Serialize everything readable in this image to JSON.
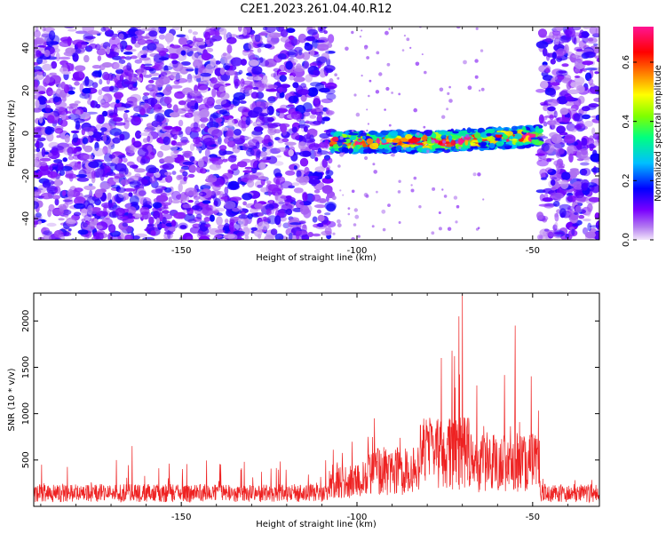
{
  "figure": {
    "title": "C2E1.2023.261.04.40.R12"
  },
  "chart_data": [
    {
      "type": "heatmap",
      "xlabel": "Height of straight line (km)",
      "ylabel": "Frequency (Hz)",
      "xlim": [
        -192,
        -31
      ],
      "ylim": [
        -50,
        50
      ],
      "x_ticks": [
        -150,
        -100,
        -50
      ],
      "y_ticks": [
        -40,
        -20,
        0,
        20,
        40
      ],
      "colorbar": {
        "label": "Normalized spectral amplitude",
        "range": [
          0.0,
          0.72
        ],
        "ticks": [
          0.0,
          0.2,
          0.4,
          0.6
        ],
        "colormap": [
          "#f2e6fb",
          "#7a00ff",
          "#0000ff",
          "#00bfff",
          "#00ff80",
          "#7fff00",
          "#ffff00",
          "#ff8000",
          "#ff0000",
          "#ff1493"
        ]
      },
      "regions": [
        {
          "x": [
            -192,
            -107
          ],
          "freq": [
            -50,
            50
          ],
          "level": 0.1,
          "note": "broadband noise"
        },
        {
          "x": [
            -107,
            -48
          ],
          "freq": [
            -9,
            1
          ],
          "level": 0.6,
          "note": "echo band"
        },
        {
          "x": [
            -48,
            -31
          ],
          "freq": [
            -50,
            50
          ],
          "level": 0.1,
          "note": "broadband noise"
        }
      ]
    },
    {
      "type": "line",
      "xlabel": "Height of straight line (km)",
      "ylabel": "SNR (10 * v/v)",
      "xlim": [
        -192,
        -31
      ],
      "ylim": [
        0,
        2300
      ],
      "x_ticks": [
        -150,
        -100,
        -50
      ],
      "y_ticks": [
        500,
        1000,
        1500,
        2000
      ],
      "series": [
        {
          "color": "#ee2222",
          "segments": [
            {
              "x": [
                -192,
                -108
              ],
              "baseline": 150,
              "max": 650
            },
            {
              "x": [
                -108,
                -97
              ],
              "baseline": 300,
              "max": 950
            },
            {
              "x": [
                -97,
                -82
              ],
              "baseline": 400,
              "max": 1050
            },
            {
              "x": [
                -82,
                -67
              ],
              "baseline": 600,
              "max": 2300
            },
            {
              "x": [
                -67,
                -48
              ],
              "baseline": 500,
              "max": 1950
            },
            {
              "x": [
                -48,
                -31
              ],
              "baseline": 150,
              "max": 420
            }
          ],
          "peaks": [
            {
              "x": -70,
              "y": 2300
            },
            {
              "x": -71,
              "y": 2050
            },
            {
              "x": -55,
              "y": 1950
            },
            {
              "x": -76,
              "y": 1600
            },
            {
              "x": -95,
              "y": 950
            },
            {
              "x": -164,
              "y": 650
            }
          ]
        }
      ]
    }
  ]
}
